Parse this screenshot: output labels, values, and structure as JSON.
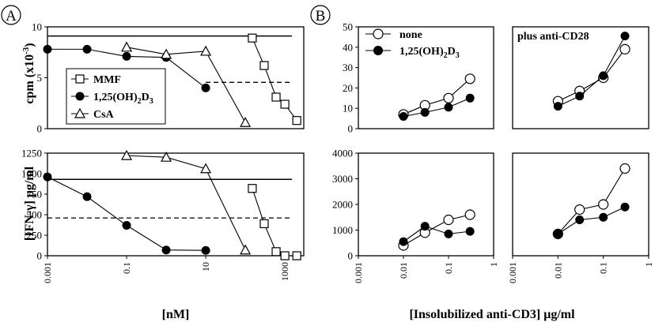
{
  "panel_labels": {
    "a": "A",
    "b": "B"
  },
  "colors": {
    "ink": "#000000",
    "background": "#ffffff"
  },
  "axis_titles": {
    "a_top_y": "cpm (x10",
    "a_top_y_sup": "-3",
    "a_top_y_end": ")",
    "a_bottom_y": "[IFN-γ] pg/ml",
    "a_x": "[nM]",
    "b_x_pre": "[Insolubilized anti-CD3] ",
    "b_x_unit": "μg/ml"
  },
  "legend_a": {
    "placement": "left-inside-top-panel",
    "entries": [
      {
        "marker": "open-square",
        "label": "MMF"
      },
      {
        "marker": "filled-circle",
        "label": "1,25(OH)",
        "sub": "2",
        "label_end": "D",
        "sub2": "3"
      },
      {
        "marker": "open-triangle",
        "label": "CsA"
      }
    ]
  },
  "legend_b": {
    "placement": "top-left",
    "entries": [
      {
        "marker": "open-circle",
        "label": "none"
      },
      {
        "marker": "filled-circle",
        "label": "1,25(OH)",
        "sub": "2",
        "label_end": "D",
        "sub2": "3"
      }
    ]
  },
  "annotation_b": "plus anti-CD28",
  "chart_data": [
    {
      "id": "A-top",
      "type": "line",
      "x_scale": "log",
      "xlim": [
        0.001,
        3000
      ],
      "ylim": [
        0,
        10
      ],
      "y_ticks": [
        "0",
        "5",
        "10"
      ],
      "y_tick_values": [
        0,
        5,
        10
      ],
      "reference_lines": [
        {
          "style": "solid",
          "y": 9.1,
          "x_range": [
            0.001,
            1500
          ]
        },
        {
          "style": "dashed",
          "y": 4.55,
          "x_range": [
            10,
            1500
          ]
        }
      ],
      "series": [
        {
          "name": "MMF",
          "marker": "open-square",
          "x": [
            150,
            300,
            600,
            1000,
            2000
          ],
          "y": [
            8.9,
            6.2,
            3.1,
            2.4,
            0.8
          ]
        },
        {
          "name": "1,25(OH)2D3",
          "marker": "filled-circle",
          "x": [
            0.001,
            0.01,
            0.1,
            1,
            10
          ],
          "y": [
            7.8,
            7.8,
            7.1,
            7.0,
            4.0
          ]
        },
        {
          "name": "CsA",
          "marker": "open-triangle",
          "x": [
            0.1,
            1,
            10,
            100
          ],
          "y": [
            8.0,
            7.3,
            7.6,
            0.6
          ]
        }
      ]
    },
    {
      "id": "A-bottom",
      "type": "line",
      "x_scale": "log",
      "xlim": [
        0.001,
        3000
      ],
      "x_ticks": [
        "0.001",
        "0.1",
        "10",
        "1000"
      ],
      "x_tick_values": [
        0.001,
        0.1,
        10,
        1000
      ],
      "ylim": [
        0,
        1250
      ],
      "y_ticks": [
        "0",
        "250",
        "500",
        "750",
        "1000",
        "1250"
      ],
      "y_tick_values": [
        0,
        250,
        500,
        750,
        1000,
        1250
      ],
      "reference_lines": [
        {
          "style": "solid",
          "y": 930,
          "x_range": [
            0.001,
            1500
          ]
        },
        {
          "style": "dashed",
          "y": 460,
          "x_range": [
            0.001,
            1500
          ]
        }
      ],
      "series": [
        {
          "name": "MMF",
          "marker": "open-square",
          "x": [
            150,
            300,
            600,
            1000,
            2000
          ],
          "y": [
            820,
            390,
            50,
            0,
            0
          ]
        },
        {
          "name": "1,25(OH)2D3",
          "marker": "filled-circle",
          "x": [
            0.001,
            0.01,
            0.1,
            1,
            10
          ],
          "y": [
            960,
            720,
            370,
            70,
            65
          ]
        },
        {
          "name": "CsA",
          "marker": "open-triangle",
          "x": [
            0.1,
            1,
            10,
            100
          ],
          "y": [
            1220,
            1200,
            1060,
            70
          ]
        }
      ]
    },
    {
      "id": "B-top-left",
      "type": "line",
      "x_scale": "log",
      "xlim": [
        0.001,
        1
      ],
      "ylim": [
        0,
        50
      ],
      "y_ticks": [
        "0",
        "10",
        "20",
        "30",
        "40",
        "50"
      ],
      "y_tick_values": [
        0,
        10,
        20,
        30,
        40,
        50
      ],
      "series": [
        {
          "name": "none",
          "marker": "open-circle",
          "x": [
            0.01,
            0.03,
            0.1,
            0.3
          ],
          "y": [
            7,
            11.5,
            15,
            24.5
          ]
        },
        {
          "name": "1,25(OH)2D3",
          "marker": "filled-circle",
          "x": [
            0.01,
            0.03,
            0.1,
            0.3
          ],
          "y": [
            6,
            8,
            10.5,
            15
          ]
        }
      ]
    },
    {
      "id": "B-top-right",
      "type": "line",
      "x_scale": "log",
      "xlim": [
        0.001,
        1
      ],
      "ylim": [
        0,
        50
      ],
      "series": [
        {
          "name": "none",
          "marker": "open-circle",
          "x": [
            0.01,
            0.03,
            0.1,
            0.3
          ],
          "y": [
            13.5,
            18.5,
            25,
            39
          ]
        },
        {
          "name": "1,25(OH)2D3",
          "marker": "filled-circle",
          "x": [
            0.01,
            0.03,
            0.1,
            0.3
          ],
          "y": [
            11,
            16,
            26,
            45.5
          ]
        }
      ]
    },
    {
      "id": "B-bottom-left",
      "type": "line",
      "x_scale": "log",
      "xlim": [
        0.001,
        1
      ],
      "x_ticks": [
        "0.001",
        "0.01",
        "0.1",
        "1"
      ],
      "x_tick_values": [
        0.001,
        0.01,
        0.1,
        1
      ],
      "ylim": [
        0,
        4000
      ],
      "y_ticks": [
        "0",
        "1000",
        "2000",
        "3000",
        "4000"
      ],
      "y_tick_values": [
        0,
        1000,
        2000,
        3000,
        4000
      ],
      "series": [
        {
          "name": "none",
          "marker": "open-circle",
          "x": [
            0.01,
            0.03,
            0.1,
            0.3
          ],
          "y": [
            400,
            900,
            1400,
            1600
          ]
        },
        {
          "name": "1,25(OH)2D3",
          "marker": "filled-circle",
          "x": [
            0.01,
            0.03,
            0.1,
            0.3
          ],
          "y": [
            550,
            1150,
            850,
            950
          ]
        }
      ]
    },
    {
      "id": "B-bottom-right",
      "type": "line",
      "x_scale": "log",
      "xlim": [
        0.001,
        1
      ],
      "x_ticks": [
        "0.001",
        "0.01",
        "0.1",
        "1"
      ],
      "x_tick_values": [
        0.001,
        0.01,
        0.1,
        1
      ],
      "ylim": [
        0,
        4000
      ],
      "series": [
        {
          "name": "none",
          "marker": "open-circle",
          "x": [
            0.01,
            0.03,
            0.1,
            0.3
          ],
          "y": [
            850,
            1800,
            2000,
            3400
          ]
        },
        {
          "name": "1,25(OH)2D3",
          "marker": "filled-circle",
          "x": [
            0.01,
            0.03,
            0.1,
            0.3
          ],
          "y": [
            850,
            1400,
            1500,
            1900
          ]
        }
      ]
    }
  ]
}
